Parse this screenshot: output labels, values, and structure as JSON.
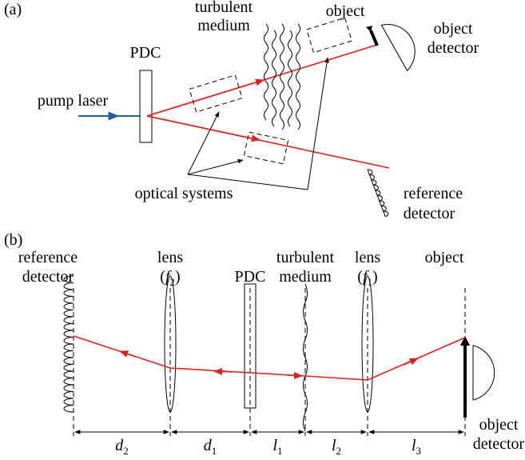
{
  "panel_a": {
    "label": "(a)",
    "medium": [
      "turbulent",
      "medium"
    ],
    "object": "object",
    "object_detector": [
      "object",
      "detector"
    ],
    "pdc": "PDC",
    "pump": "pump laser",
    "optics": "optical systems",
    "reference_detector": [
      "reference",
      "detector"
    ]
  },
  "panel_b": {
    "label": "(b)",
    "reference_detector": [
      "reference",
      "detector"
    ],
    "lens2": {
      "name": "lens",
      "open": "(",
      "var": "f",
      "sub": "2",
      "close": ")"
    },
    "pdc": "PDC",
    "medium": [
      "turbulent",
      "medium"
    ],
    "lens1": {
      "name": "lens",
      "open": "(",
      "var": "f",
      "sub": "1",
      "close": ")"
    },
    "object": "object",
    "object_detector": [
      "object",
      "detector"
    ],
    "distances": [
      {
        "var": "d",
        "sub": "2"
      },
      {
        "var": "d",
        "sub": "1"
      },
      {
        "var": "l",
        "sub": "1"
      },
      {
        "var": "l",
        "sub": "2"
      },
      {
        "var": "l",
        "sub": "3"
      }
    ]
  }
}
